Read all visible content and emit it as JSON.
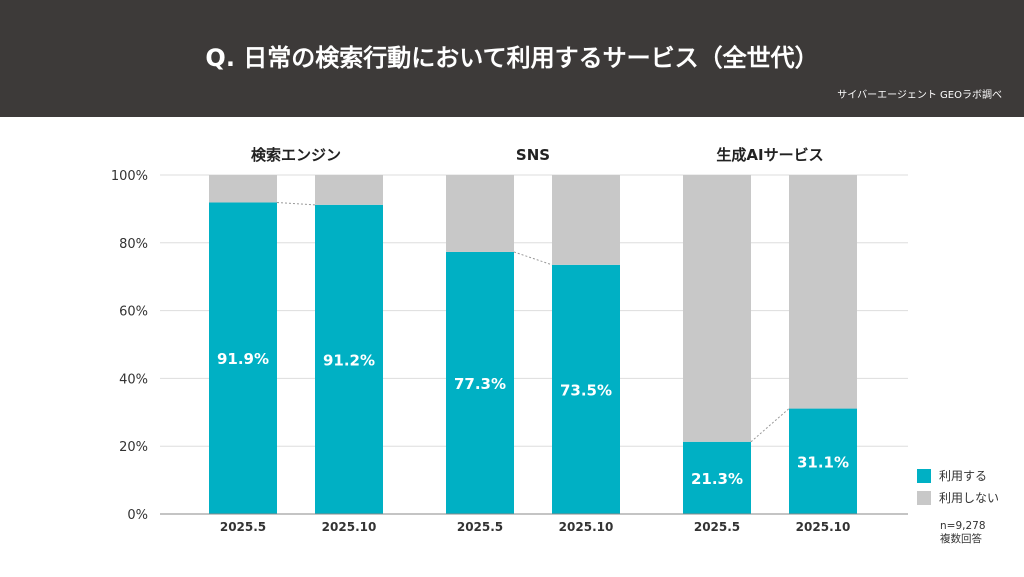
{
  "header": {
    "title": "Q. 日常の検索行動において利用するサービス（全世代）",
    "source": "サイバーエージェント GEOラボ調べ"
  },
  "chart_data": {
    "type": "bar",
    "stacked": true,
    "groups": [
      "検索エンジン",
      "SNS",
      "生成AIサービス"
    ],
    "categories": [
      "2025.5",
      "2025.10"
    ],
    "series": [
      {
        "name": "利用する",
        "color": "#00b0c4",
        "values": [
          [
            91.9,
            91.2
          ],
          [
            77.3,
            73.5
          ],
          [
            21.3,
            31.1
          ]
        ]
      },
      {
        "name": "利用しない",
        "color": "#c8c8c8",
        "values": [
          [
            8.1,
            8.8
          ],
          [
            22.7,
            26.5
          ],
          [
            78.7,
            68.9
          ]
        ]
      }
    ],
    "data_labels": [
      [
        "91.9%",
        "91.2%"
      ],
      [
        "77.3%",
        "73.5%"
      ],
      [
        "21.3%",
        "31.1%"
      ]
    ],
    "ylim": [
      0,
      100
    ],
    "yticks": [
      "0%",
      "20%",
      "40%",
      "60%",
      "80%",
      "100%"
    ],
    "grid": true,
    "legend": "bottom-right"
  },
  "note": {
    "n": "n=9,278",
    "type": "複数回答"
  }
}
